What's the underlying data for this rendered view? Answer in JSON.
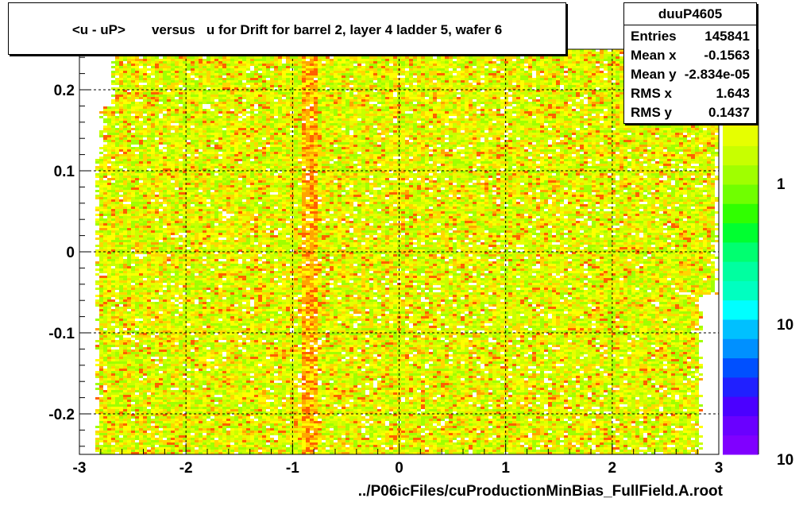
{
  "title": "<u - uP>       versus   u for Drift for barrel 2, layer 4 ladder 5, wafer 6",
  "stats": {
    "name": "duuP4605",
    "rows": [
      {
        "key": "Entries",
        "value": "145841"
      },
      {
        "key": "Mean x",
        "value": "-0.1563"
      },
      {
        "key": "Mean y",
        "value": "-2.834e-05"
      },
      {
        "key": "RMS x",
        "value": "1.643"
      },
      {
        "key": "RMS y",
        "value": "0.1437"
      }
    ]
  },
  "footer": "../P06icFiles/cuProductionMinBias_FullField.A.root",
  "colors": {
    "palette": [
      "#8000ff",
      "#6a00ff",
      "#4b00ff",
      "#2020ff",
      "#0050ff",
      "#0090ff",
      "#00c0ff",
      "#00ffff",
      "#00ffc0",
      "#00ffa0",
      "#00ff70",
      "#00ff30",
      "#30ff00",
      "#70ff00",
      "#a0ff00",
      "#c8ff00",
      "#e6ff00",
      "#ffff00",
      "#ffd700",
      "#ffa500",
      "#ff6000"
    ],
    "background": "#ffffff"
  },
  "chart_data": {
    "type": "heatmap",
    "x_axis": {
      "range": [
        -3,
        3
      ],
      "ticks": [
        -3,
        -2,
        -1,
        0,
        1,
        2,
        3
      ]
    },
    "y_axis": {
      "range": [
        -0.25,
        0.25
      ],
      "ticks": [
        -0.2,
        -0.1,
        0,
        0.1,
        0.2
      ]
    },
    "z_axis": {
      "scale": "log",
      "tick_labels": [
        "1",
        "10",
        "10"
      ]
    },
    "grid": true,
    "enhanced_band_x": [
      -0.95,
      -0.8
    ],
    "occupied_x_range": [
      -2.85,
      2.8
    ],
    "occupied_y_range": [
      -0.25,
      0.25
    ],
    "legend_position": "right"
  }
}
